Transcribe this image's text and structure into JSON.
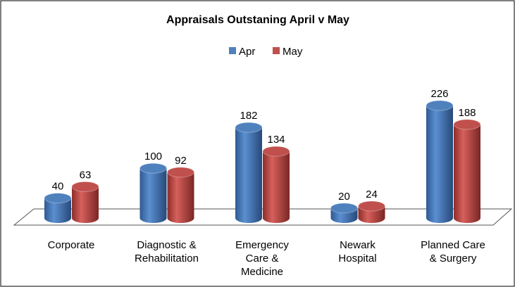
{
  "chart_data": {
    "type": "bar3d",
    "title": "Appraisals Outstaning April v May",
    "categories": [
      "Corporate",
      "Diagnostic & Rehabilitation",
      "Emergency Care & Medicine",
      "Newark Hospital",
      "Planned Care & Surgery"
    ],
    "series": [
      {
        "name": "Apr",
        "color": "#4f81bd",
        "values": [
          40,
          100,
          182,
          20,
          226
        ]
      },
      {
        "name": "May",
        "color": "#c0504d",
        "values": [
          63,
          92,
          134,
          24,
          188
        ]
      }
    ],
    "legend": "top"
  }
}
